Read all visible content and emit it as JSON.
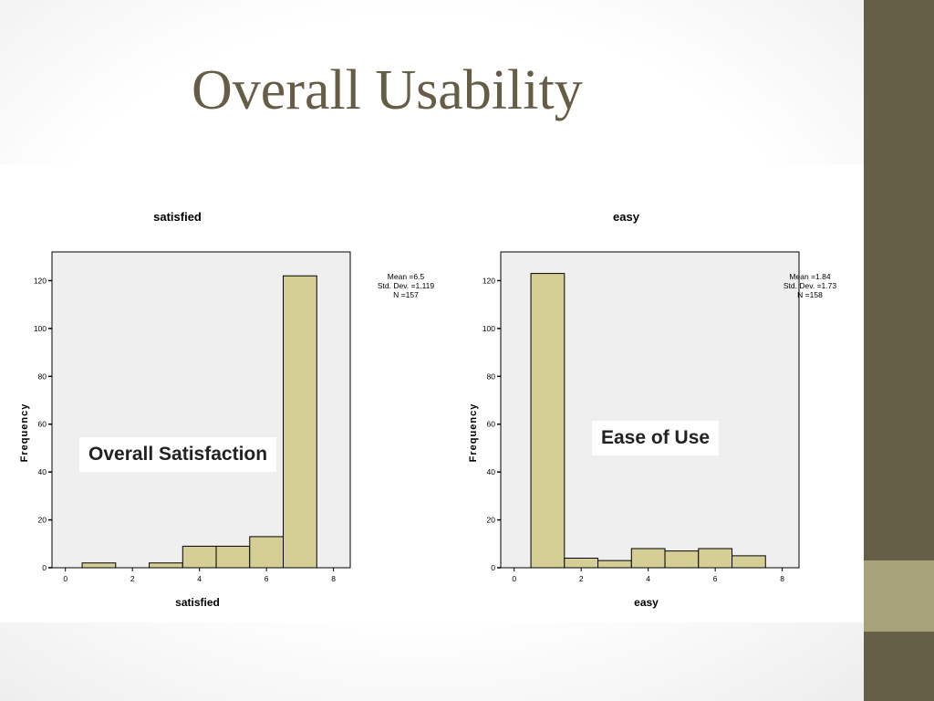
{
  "slide": {
    "title": "Overall Usability",
    "colors": {
      "sidebar": "#665f48",
      "sidebar_accent": "#a8a27a",
      "title": "#655d46",
      "bar_fill": "#d5cf96",
      "plot_bg": "#efefef"
    }
  },
  "chart_data": [
    {
      "type": "bar",
      "title": "satisfied",
      "xlabel": "satisfied",
      "ylabel": "Frequency",
      "xlim": [
        -0.4,
        8.5
      ],
      "ylim": [
        0,
        132
      ],
      "xticks": [
        0,
        2,
        4,
        6,
        8
      ],
      "yticks": [
        0,
        20,
        40,
        60,
        80,
        100,
        120
      ],
      "bins": [
        {
          "x0": 0.5,
          "x1": 1.5,
          "value": 2
        },
        {
          "x0": 2.5,
          "x1": 3.5,
          "value": 2
        },
        {
          "x0": 3.5,
          "x1": 4.5,
          "value": 9
        },
        {
          "x0": 4.5,
          "x1": 5.5,
          "value": 9
        },
        {
          "x0": 5.5,
          "x1": 6.5,
          "value": 13
        },
        {
          "x0": 6.5,
          "x1": 7.5,
          "value": 122
        }
      ],
      "stats": [
        "Mean =6.5",
        "Std. Dev. =1.119",
        "N =157"
      ],
      "overlay_label": "Overall Satisfaction"
    },
    {
      "type": "bar",
      "title": "easy",
      "xlabel": "easy",
      "ylabel": "Frequency",
      "xlim": [
        -0.4,
        8.5
      ],
      "ylim": [
        0,
        132
      ],
      "xticks": [
        0,
        2,
        4,
        6,
        8
      ],
      "yticks": [
        0,
        20,
        40,
        60,
        80,
        100,
        120
      ],
      "bins": [
        {
          "x0": 0.5,
          "x1": 1.5,
          "value": 123
        },
        {
          "x0": 1.5,
          "x1": 2.5,
          "value": 4
        },
        {
          "x0": 2.5,
          "x1": 3.5,
          "value": 3
        },
        {
          "x0": 3.5,
          "x1": 4.5,
          "value": 8
        },
        {
          "x0": 4.5,
          "x1": 5.5,
          "value": 7
        },
        {
          "x0": 5.5,
          "x1": 6.5,
          "value": 8
        },
        {
          "x0": 6.5,
          "x1": 7.5,
          "value": 5
        }
      ],
      "stats": [
        "Mean =1.84",
        "Std. Dev. =1.73",
        "N =158"
      ],
      "overlay_label": "Ease of Use"
    }
  ]
}
